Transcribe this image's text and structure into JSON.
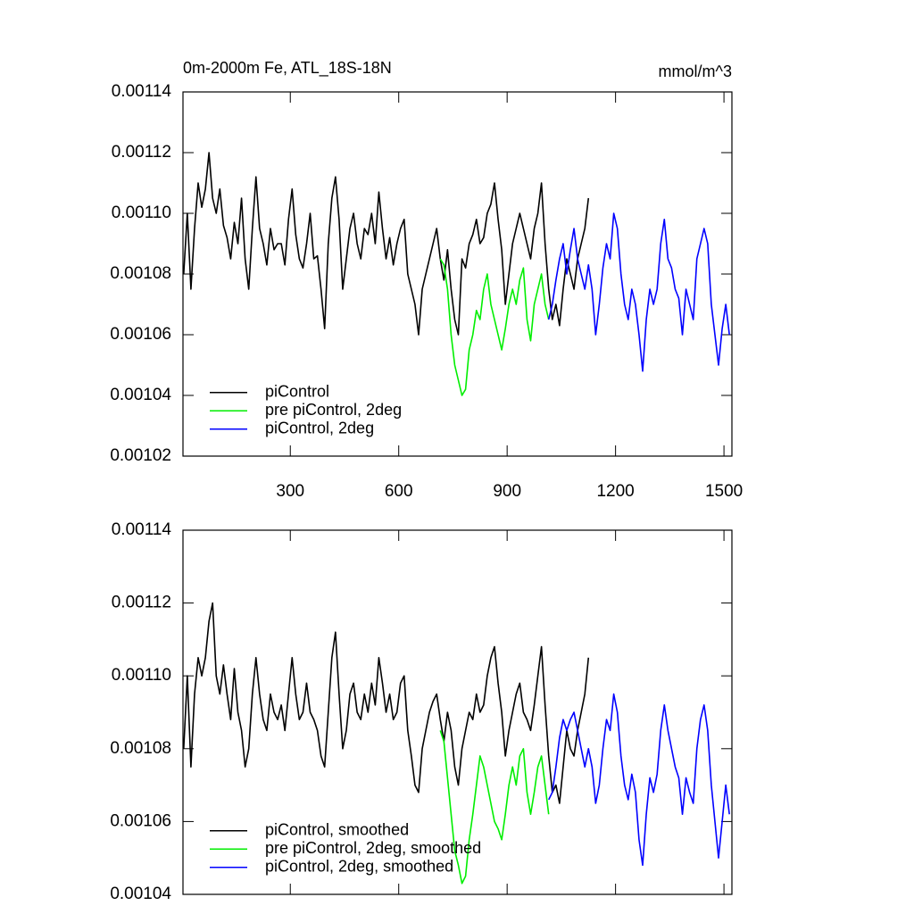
{
  "chart_data": [
    {
      "type": "line",
      "title": "0m-2000m Fe, ATL_18S-18N",
      "units": "mmol/m^3",
      "xlim": [
        3,
        1522
      ],
      "xticks": [
        300,
        600,
        900,
        1200,
        1500
      ],
      "xtick_labels_visible": true,
      "ylim": [
        0.00102,
        0.00114
      ],
      "yticks": [
        0.00102,
        0.00104,
        0.00106,
        0.00108,
        {
          "value": 0.0011,
          "label": "0.00110"
        },
        0.00112,
        0.00114
      ],
      "grid": false,
      "legend": "lower left",
      "series": [
        {
          "name": "piControl",
          "color": "#000000",
          "x": [
            5,
            15,
            25,
            35,
            45,
            55,
            65,
            75,
            85,
            95,
            105,
            115,
            125,
            135,
            145,
            155,
            165,
            175,
            185,
            195,
            205,
            215,
            225,
            235,
            245,
            255,
            265,
            275,
            285,
            295,
            305,
            315,
            325,
            335,
            345,
            355,
            365,
            375,
            385,
            395,
            405,
            415,
            425,
            435,
            445,
            455,
            465,
            475,
            485,
            495,
            505,
            515,
            525,
            535,
            545,
            555,
            565,
            575,
            585,
            595,
            605,
            615,
            625,
            635,
            645,
            655,
            665,
            675,
            685,
            695,
            705,
            715,
            725,
            735,
            745,
            755,
            765,
            775,
            785,
            795,
            805,
            815,
            825,
            835,
            845,
            855,
            865,
            875,
            885,
            895,
            905,
            915,
            925,
            935,
            945,
            955,
            965,
            975,
            985,
            995,
            1005,
            1015,
            1025,
            1035,
            1045,
            1055,
            1065,
            1075,
            1085,
            1095,
            1105,
            1115,
            1125
          ],
          "values": [
            0.00108,
            0.0011,
            0.001075,
            0.001095,
            0.00111,
            0.001102,
            0.001108,
            0.00112,
            0.001105,
            0.0011,
            0.001108,
            0.001096,
            0.001092,
            0.001085,
            0.001097,
            0.00109,
            0.001105,
            0.001085,
            0.001075,
            0.001095,
            0.001112,
            0.001095,
            0.00109,
            0.001083,
            0.001095,
            0.001088,
            0.00109,
            0.00109,
            0.001083,
            0.001098,
            0.001108,
            0.001093,
            0.001085,
            0.001082,
            0.00109,
            0.0011,
            0.001085,
            0.001086,
            0.001075,
            0.001062,
            0.00109,
            0.001105,
            0.001112,
            0.001098,
            0.001075,
            0.001085,
            0.001095,
            0.0011,
            0.00109,
            0.001085,
            0.001095,
            0.001093,
            0.0011,
            0.00109,
            0.001107,
            0.001095,
            0.001085,
            0.001092,
            0.001083,
            0.00109,
            0.001095,
            0.001098,
            0.00108,
            0.001075,
            0.00107,
            0.00106,
            0.001075,
            0.00108,
            0.001085,
            0.00109,
            0.001095,
            0.001085,
            0.001078,
            0.001088,
            0.001075,
            0.001065,
            0.00106,
            0.001085,
            0.001082,
            0.00109,
            0.001093,
            0.001098,
            0.00109,
            0.001092,
            0.0011,
            0.001103,
            0.00111,
            0.001098,
            0.001088,
            0.00107,
            0.00108,
            0.00109,
            0.001095,
            0.0011,
            0.001095,
            0.00109,
            0.001085,
            0.001095,
            0.0011,
            0.00111,
            0.00109,
            0.001075,
            0.001065,
            0.00107,
            0.001063,
            0.001075,
            0.001085,
            0.00108,
            0.001075,
            0.001085,
            0.00109,
            0.001095,
            0.001105
          ]
        },
        {
          "name": "pre piControl, 2deg",
          "color": "#00ee00",
          "x": [
            715,
            725,
            735,
            745,
            755,
            765,
            775,
            785,
            795,
            805,
            815,
            825,
            835,
            845,
            855,
            865,
            875,
            885,
            895,
            905,
            915,
            925,
            935,
            945,
            955,
            965,
            975,
            985,
            995,
            1005,
            1015
          ],
          "values": [
            0.001085,
            0.001083,
            0.001075,
            0.00106,
            0.00105,
            0.001045,
            0.00104,
            0.001042,
            0.001055,
            0.00106,
            0.001068,
            0.001065,
            0.001075,
            0.00108,
            0.00107,
            0.001065,
            0.00106,
            0.001055,
            0.001062,
            0.00107,
            0.001075,
            0.00107,
            0.001078,
            0.001082,
            0.001065,
            0.001058,
            0.00107,
            0.001075,
            0.00108,
            0.00107,
            0.001065
          ]
        },
        {
          "name": "piControl, 2deg",
          "color": "#0000ff",
          "x": [
            1015,
            1025,
            1035,
            1045,
            1055,
            1065,
            1075,
            1085,
            1095,
            1105,
            1115,
            1125,
            1135,
            1145,
            1155,
            1165,
            1175,
            1185,
            1195,
            1205,
            1215,
            1225,
            1235,
            1245,
            1255,
            1265,
            1275,
            1285,
            1295,
            1305,
            1315,
            1325,
            1335,
            1345,
            1355,
            1365,
            1375,
            1385,
            1395,
            1405,
            1415,
            1425,
            1435,
            1445,
            1455,
            1465,
            1475,
            1485,
            1495,
            1505,
            1515
          ],
          "values": [
            0.001065,
            0.00107,
            0.001078,
            0.001085,
            0.00109,
            0.00108,
            0.001088,
            0.001095,
            0.001085,
            0.00108,
            0.001075,
            0.001083,
            0.001075,
            0.00106,
            0.00107,
            0.001082,
            0.00109,
            0.001085,
            0.0011,
            0.001095,
            0.00108,
            0.00107,
            0.001065,
            0.001075,
            0.00107,
            0.00106,
            0.001048,
            0.001065,
            0.001075,
            0.00107,
            0.001075,
            0.00109,
            0.001098,
            0.001085,
            0.001082,
            0.001075,
            0.001072,
            0.00106,
            0.001075,
            0.00107,
            0.001065,
            0.001085,
            0.00109,
            0.001095,
            0.00109,
            0.00107,
            0.00106,
            0.00105,
            0.001062,
            0.00107,
            0.00106
          ]
        }
      ]
    },
    {
      "type": "line",
      "xlim": [
        3,
        1522
      ],
      "xticks": [
        300,
        600,
        900,
        1200,
        1500
      ],
      "xtick_labels_visible": false,
      "ylim": [
        0.00104,
        0.00114
      ],
      "yticks": [
        0.00104,
        0.00106,
        0.00108,
        {
          "value": 0.0011,
          "label": "0.00110"
        },
        0.00112,
        0.00114
      ],
      "grid": false,
      "legend": "lower left",
      "series": [
        {
          "name": "piControl, smoothed",
          "color": "#000000",
          "x": [
            5,
            15,
            25,
            35,
            45,
            55,
            65,
            75,
            85,
            95,
            105,
            115,
            125,
            135,
            145,
            155,
            165,
            175,
            185,
            195,
            205,
            215,
            225,
            235,
            245,
            255,
            265,
            275,
            285,
            295,
            305,
            315,
            325,
            335,
            345,
            355,
            365,
            375,
            385,
            395,
            405,
            415,
            425,
            435,
            445,
            455,
            465,
            475,
            485,
            495,
            505,
            515,
            525,
            535,
            545,
            555,
            565,
            575,
            585,
            595,
            605,
            615,
            625,
            635,
            645,
            655,
            665,
            675,
            685,
            695,
            705,
            715,
            725,
            735,
            745,
            755,
            765,
            775,
            785,
            795,
            805,
            815,
            825,
            835,
            845,
            855,
            865,
            875,
            885,
            895,
            905,
            915,
            925,
            935,
            945,
            955,
            965,
            975,
            985,
            995,
            1005,
            1015,
            1025,
            1035,
            1045,
            1055,
            1065,
            1075,
            1085,
            1095,
            1105,
            1115,
            1125
          ],
          "values": [
            0.00108,
            0.0011,
            0.001075,
            0.001095,
            0.001105,
            0.0011,
            0.001105,
            0.001115,
            0.00112,
            0.0011,
            0.001095,
            0.001103,
            0.001095,
            0.001088,
            0.001102,
            0.00109,
            0.001085,
            0.001075,
            0.00108,
            0.001095,
            0.001105,
            0.001095,
            0.001088,
            0.001085,
            0.001095,
            0.00109,
            0.001088,
            0.001092,
            0.001085,
            0.001095,
            0.001105,
            0.001095,
            0.001088,
            0.00109,
            0.001098,
            0.00109,
            0.001088,
            0.001085,
            0.001078,
            0.001075,
            0.00109,
            0.001105,
            0.001112,
            0.001095,
            0.00108,
            0.001085,
            0.001095,
            0.001098,
            0.00109,
            0.001088,
            0.001095,
            0.00109,
            0.001098,
            0.001092,
            0.001105,
            0.001098,
            0.00109,
            0.001095,
            0.001088,
            0.00109,
            0.001098,
            0.0011,
            0.001085,
            0.001078,
            0.00107,
            0.001068,
            0.00108,
            0.001085,
            0.00109,
            0.001093,
            0.001095,
            0.001088,
            0.001082,
            0.00109,
            0.001085,
            0.001075,
            0.00107,
            0.00108,
            0.001085,
            0.00109,
            0.001088,
            0.001095,
            0.00109,
            0.001092,
            0.0011,
            0.001105,
            0.001108,
            0.001098,
            0.00109,
            0.001078,
            0.001085,
            0.00109,
            0.001095,
            0.001098,
            0.00109,
            0.001088,
            0.001085,
            0.001092,
            0.0011,
            0.001108,
            0.001092,
            0.001078,
            0.001068,
            0.00107,
            0.001065,
            0.001075,
            0.001085,
            0.00108,
            0.001078,
            0.001085,
            0.00109,
            0.001095,
            0.001105
          ]
        },
        {
          "name": "pre piControl, 2deg, smoothed",
          "color": "#00ee00",
          "x": [
            715,
            725,
            735,
            745,
            755,
            765,
            775,
            785,
            795,
            805,
            815,
            825,
            835,
            845,
            855,
            865,
            875,
            885,
            895,
            905,
            915,
            925,
            935,
            945,
            955,
            965,
            975,
            985,
            995,
            1005,
            1015
          ],
          "values": [
            0.001085,
            0.001082,
            0.001072,
            0.001062,
            0.001052,
            0.001048,
            0.001043,
            0.001045,
            0.001055,
            0.001062,
            0.00107,
            0.001078,
            0.001075,
            0.00107,
            0.001065,
            0.00106,
            0.001058,
            0.001055,
            0.001062,
            0.00107,
            0.001075,
            0.00107,
            0.001078,
            0.00108,
            0.001068,
            0.001062,
            0.001068,
            0.001075,
            0.001078,
            0.00107,
            0.001062
          ]
        },
        {
          "name": "piControl, 2deg, smoothed",
          "color": "#0000ff",
          "x": [
            1015,
            1025,
            1035,
            1045,
            1055,
            1065,
            1075,
            1085,
            1095,
            1105,
            1115,
            1125,
            1135,
            1145,
            1155,
            1165,
            1175,
            1185,
            1195,
            1205,
            1215,
            1225,
            1235,
            1245,
            1255,
            1265,
            1275,
            1285,
            1295,
            1305,
            1315,
            1325,
            1335,
            1345,
            1355,
            1365,
            1375,
            1385,
            1395,
            1405,
            1415,
            1425,
            1435,
            1445,
            1455,
            1465,
            1475,
            1485,
            1495,
            1505,
            1515
          ],
          "values": [
            0.001066,
            0.001068,
            0.001075,
            0.001083,
            0.001088,
            0.001085,
            0.001088,
            0.00109,
            0.001085,
            0.00108,
            0.001075,
            0.00108,
            0.001075,
            0.001065,
            0.00107,
            0.00108,
            0.001088,
            0.001085,
            0.001095,
            0.00109,
            0.001078,
            0.00107,
            0.001066,
            0.001073,
            0.001068,
            0.001055,
            0.001048,
            0.001062,
            0.001072,
            0.001068,
            0.001073,
            0.001085,
            0.001092,
            0.001085,
            0.00108,
            0.001075,
            0.001072,
            0.001062,
            0.001072,
            0.001068,
            0.001065,
            0.00108,
            0.001088,
            0.001092,
            0.001085,
            0.00107,
            0.00106,
            0.00105,
            0.00106,
            0.00107,
            0.001062
          ]
        }
      ]
    }
  ]
}
